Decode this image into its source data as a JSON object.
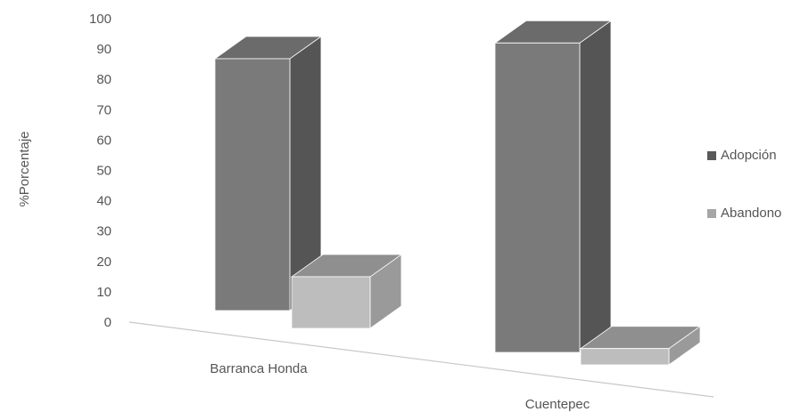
{
  "chart_data": {
    "type": "bar3d",
    "y_label": "%Porcentaje",
    "categories": [
      "Barranca Honda",
      "Cuentepec"
    ],
    "series": [
      {
        "name": "Adopción",
        "color": "#595959",
        "values": [
          83,
          95
        ]
      },
      {
        "name": "Abandono",
        "color": "#a6a6a6",
        "values": [
          17,
          5
        ]
      }
    ],
    "ylim": [
      0,
      100
    ],
    "yticks": [
      0,
      10,
      20,
      30,
      40,
      50,
      60,
      70,
      80,
      90,
      100
    ],
    "legend": "right"
  }
}
